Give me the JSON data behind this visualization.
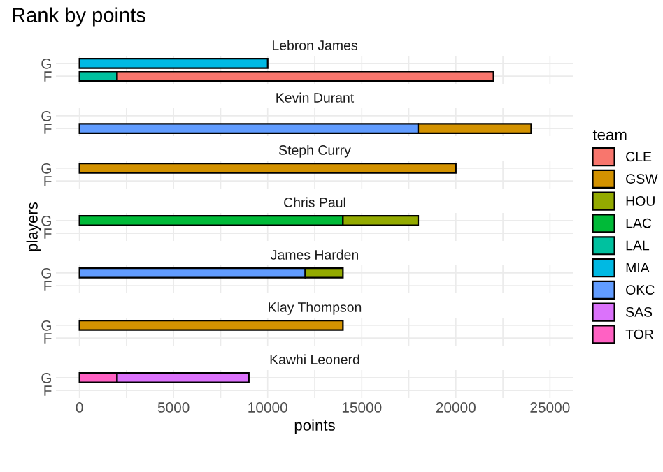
{
  "chart_data": [
    {
      "type": "bar",
      "orientation": "horizontal",
      "stacked": true,
      "title": "Rank by points",
      "subtitle": "Lebron James",
      "legend": "right",
      "legend_title": "team",
      "categories": [
        "G",
        "F"
      ],
      "xlim": [
        -1250,
        26250
      ],
      "xticks": [
        0,
        5000,
        10000,
        15000,
        20000,
        25000
      ],
      "grid": true,
      "tick_labels": "y",
      "series": [
        {
          "name": "TOR",
          "color": "#ff61c3",
          "values": [
            null,
            null
          ]
        },
        {
          "name": "SAS",
          "color": "#db72fb",
          "values": [
            null,
            null
          ]
        },
        {
          "name": "OKC",
          "color": "#619cff",
          "values": [
            null,
            null
          ]
        },
        {
          "name": "MIA",
          "color": "#00b9e3",
          "values": [
            10000,
            null
          ]
        },
        {
          "name": "LAL",
          "color": "#00c19f",
          "values": [
            null,
            2000
          ]
        },
        {
          "name": "LAC",
          "color": "#00ba38",
          "values": [
            null,
            null
          ]
        },
        {
          "name": "HOU",
          "color": "#93aa00",
          "values": [
            null,
            null
          ]
        },
        {
          "name": "GSW",
          "color": "#d39200",
          "values": [
            null,
            null
          ]
        },
        {
          "name": "CLE",
          "color": "#f8766d",
          "values": [
            null,
            20000
          ]
        }
      ]
    },
    {
      "type": "bar",
      "orientation": "horizontal",
      "stacked": true,
      "subtitle": "Kevin Durant",
      "categories": [
        "G",
        "F"
      ],
      "xlim": [
        -1250,
        26250
      ],
      "xticks": [
        0,
        5000,
        10000,
        15000,
        20000,
        25000
      ],
      "grid": true,
      "tick_labels": "y",
      "series": [
        {
          "color": "#619cff",
          "values": [
            null,
            18000
          ]
        },
        {
          "color": "#d39200",
          "values": [
            null,
            6000
          ]
        }
      ]
    },
    {
      "type": "bar",
      "orientation": "horizontal",
      "stacked": true,
      "subtitle": "Steph Curry",
      "categories": [
        "G",
        "F"
      ],
      "xlim": [
        -1250,
        26250
      ],
      "xticks": [
        0,
        5000,
        10000,
        15000,
        20000,
        25000
      ],
      "grid": true,
      "tick_labels": "y",
      "series": [
        {
          "color": "#d39200",
          "values": [
            20000,
            null
          ]
        }
      ]
    },
    {
      "type": "bar",
      "orientation": "horizontal",
      "stacked": true,
      "subtitle": "Chris Paul",
      "ylabel": "players",
      "categories": [
        "G",
        "F"
      ],
      "xlim": [
        -1250,
        26250
      ],
      "xticks": [
        0,
        5000,
        10000,
        15000,
        20000,
        25000
      ],
      "grid": true,
      "tick_labels": "y",
      "series": [
        {
          "color": "#00ba38",
          "values": [
            14000,
            null
          ]
        },
        {
          "color": "#93aa00",
          "values": [
            4000,
            null
          ]
        }
      ]
    },
    {
      "type": "bar",
      "orientation": "horizontal",
      "stacked": true,
      "subtitle": "James Harden",
      "categories": [
        "G",
        "F"
      ],
      "xlim": [
        -1250,
        26250
      ],
      "xticks": [
        0,
        5000,
        10000,
        15000,
        20000,
        25000
      ],
      "grid": true,
      "tick_labels": "y",
      "series": [
        {
          "color": "#619cff",
          "values": [
            12000,
            null
          ]
        },
        {
          "color": "#93aa00",
          "values": [
            2000,
            null
          ]
        }
      ]
    },
    {
      "type": "bar",
      "orientation": "horizontal",
      "stacked": true,
      "subtitle": "Klay Thompson",
      "categories": [
        "G",
        "F"
      ],
      "xlim": [
        -1250,
        26250
      ],
      "xticks": [
        0,
        5000,
        10000,
        15000,
        20000,
        25000
      ],
      "grid": true,
      "tick_labels": "y",
      "series": [
        {
          "color": "#d39200",
          "values": [
            14000,
            null
          ]
        }
      ]
    },
    {
      "type": "bar",
      "orientation": "horizontal",
      "stacked": true,
      "subtitle": "Kawhi Leonerd",
      "xlabel": "points",
      "categories": [
        "G",
        "F"
      ],
      "xlim": [
        -1250,
        26250
      ],
      "xticks": [
        0,
        5000,
        10000,
        15000,
        20000,
        25000
      ],
      "grid": true,
      "series": [
        {
          "color": "#ff61c3",
          "values": [
            2000,
            null
          ]
        },
        {
          "color": "#db72fb",
          "values": [
            7000,
            null
          ]
        }
      ]
    }
  ]
}
